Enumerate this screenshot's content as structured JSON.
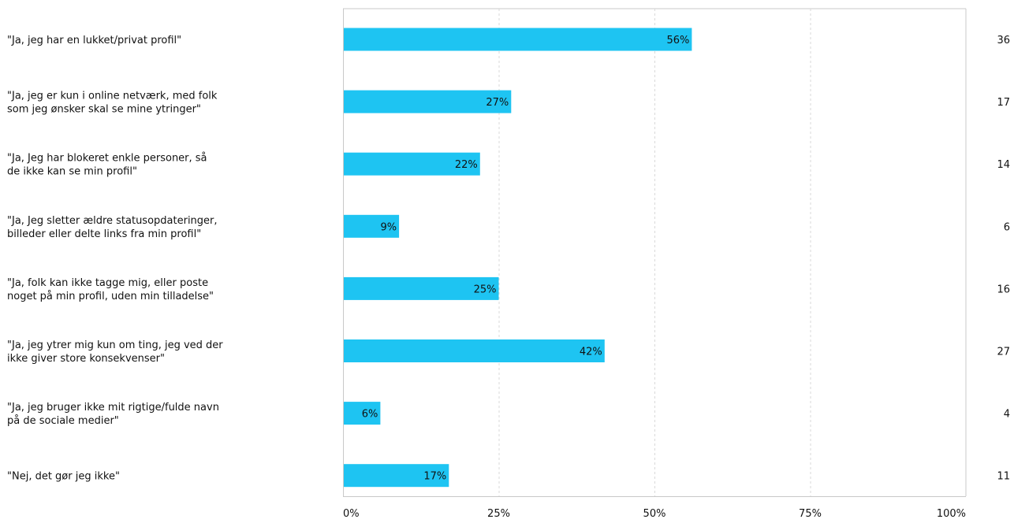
{
  "chart_data": {
    "type": "bar",
    "orientation": "horizontal",
    "categories": [
      "\"Ja, jeg har en lukket/privat profil\"",
      "\"Ja, jeg er kun i online netværk, med folk som jeg ønsker skal se mine ytringer\"",
      "\"Ja, Jeg har blokeret enkle personer, så de ikke kan se min profil\"",
      "\"Ja, Jeg sletter ældre statusopdateringer, billeder eller delte links fra min profil\"",
      "\"Ja, folk kan ikke tagge mig, eller poste noget på min profil, uden min tilladelse\"",
      "\"Ja, jeg ytrer mig kun om ting, jeg ved der ikke giver store konsekvenser\"",
      "\"Ja, jeg bruger ikke mit rigtige/fulde navn på de sociale medier\"",
      "\"Nej, det gør jeg ikke\""
    ],
    "category_lines": [
      [
        "\"Ja, jeg har en lukket/privat profil\""
      ],
      [
        "\"Ja, jeg er kun i online netværk, med folk",
        "som jeg ønsker skal se mine ytringer\""
      ],
      [
        "\"Ja, Jeg har blokeret enkle personer, så",
        "de ikke kan se min profil\""
      ],
      [
        "\"Ja, Jeg sletter ældre statusopdateringer,",
        "billeder eller delte links fra min profil\""
      ],
      [
        "\"Ja, folk kan ikke tagge mig, eller poste",
        "noget på min profil, uden min tilladelse\""
      ],
      [
        "\"Ja, jeg ytrer mig kun om ting, jeg ved der",
        "ikke giver store konsekvenser\""
      ],
      [
        "\"Ja, jeg bruger ikke mit rigtige/fulde navn",
        "på de sociale medier\""
      ],
      [
        "\"Nej, det gør jeg ikke\""
      ]
    ],
    "values": [
      56,
      27,
      22,
      9,
      25,
      42,
      6,
      17
    ],
    "value_labels": [
      "56%",
      "27%",
      "22%",
      "9%",
      "25%",
      "42%",
      "6%",
      "17%"
    ],
    "counts": [
      36,
      17,
      14,
      6,
      16,
      27,
      4,
      11
    ],
    "xlim": [
      0,
      100
    ],
    "x_ticks": [
      0,
      25,
      50,
      75,
      100
    ],
    "x_tick_labels": [
      "0%",
      "25%",
      "50%",
      "75%",
      "100%"
    ],
    "grid": true,
    "colors": {
      "bar": "#1EC4F2",
      "grid": "#D9D9D9",
      "axis": "#C8C8C8",
      "text": "#111111"
    }
  }
}
